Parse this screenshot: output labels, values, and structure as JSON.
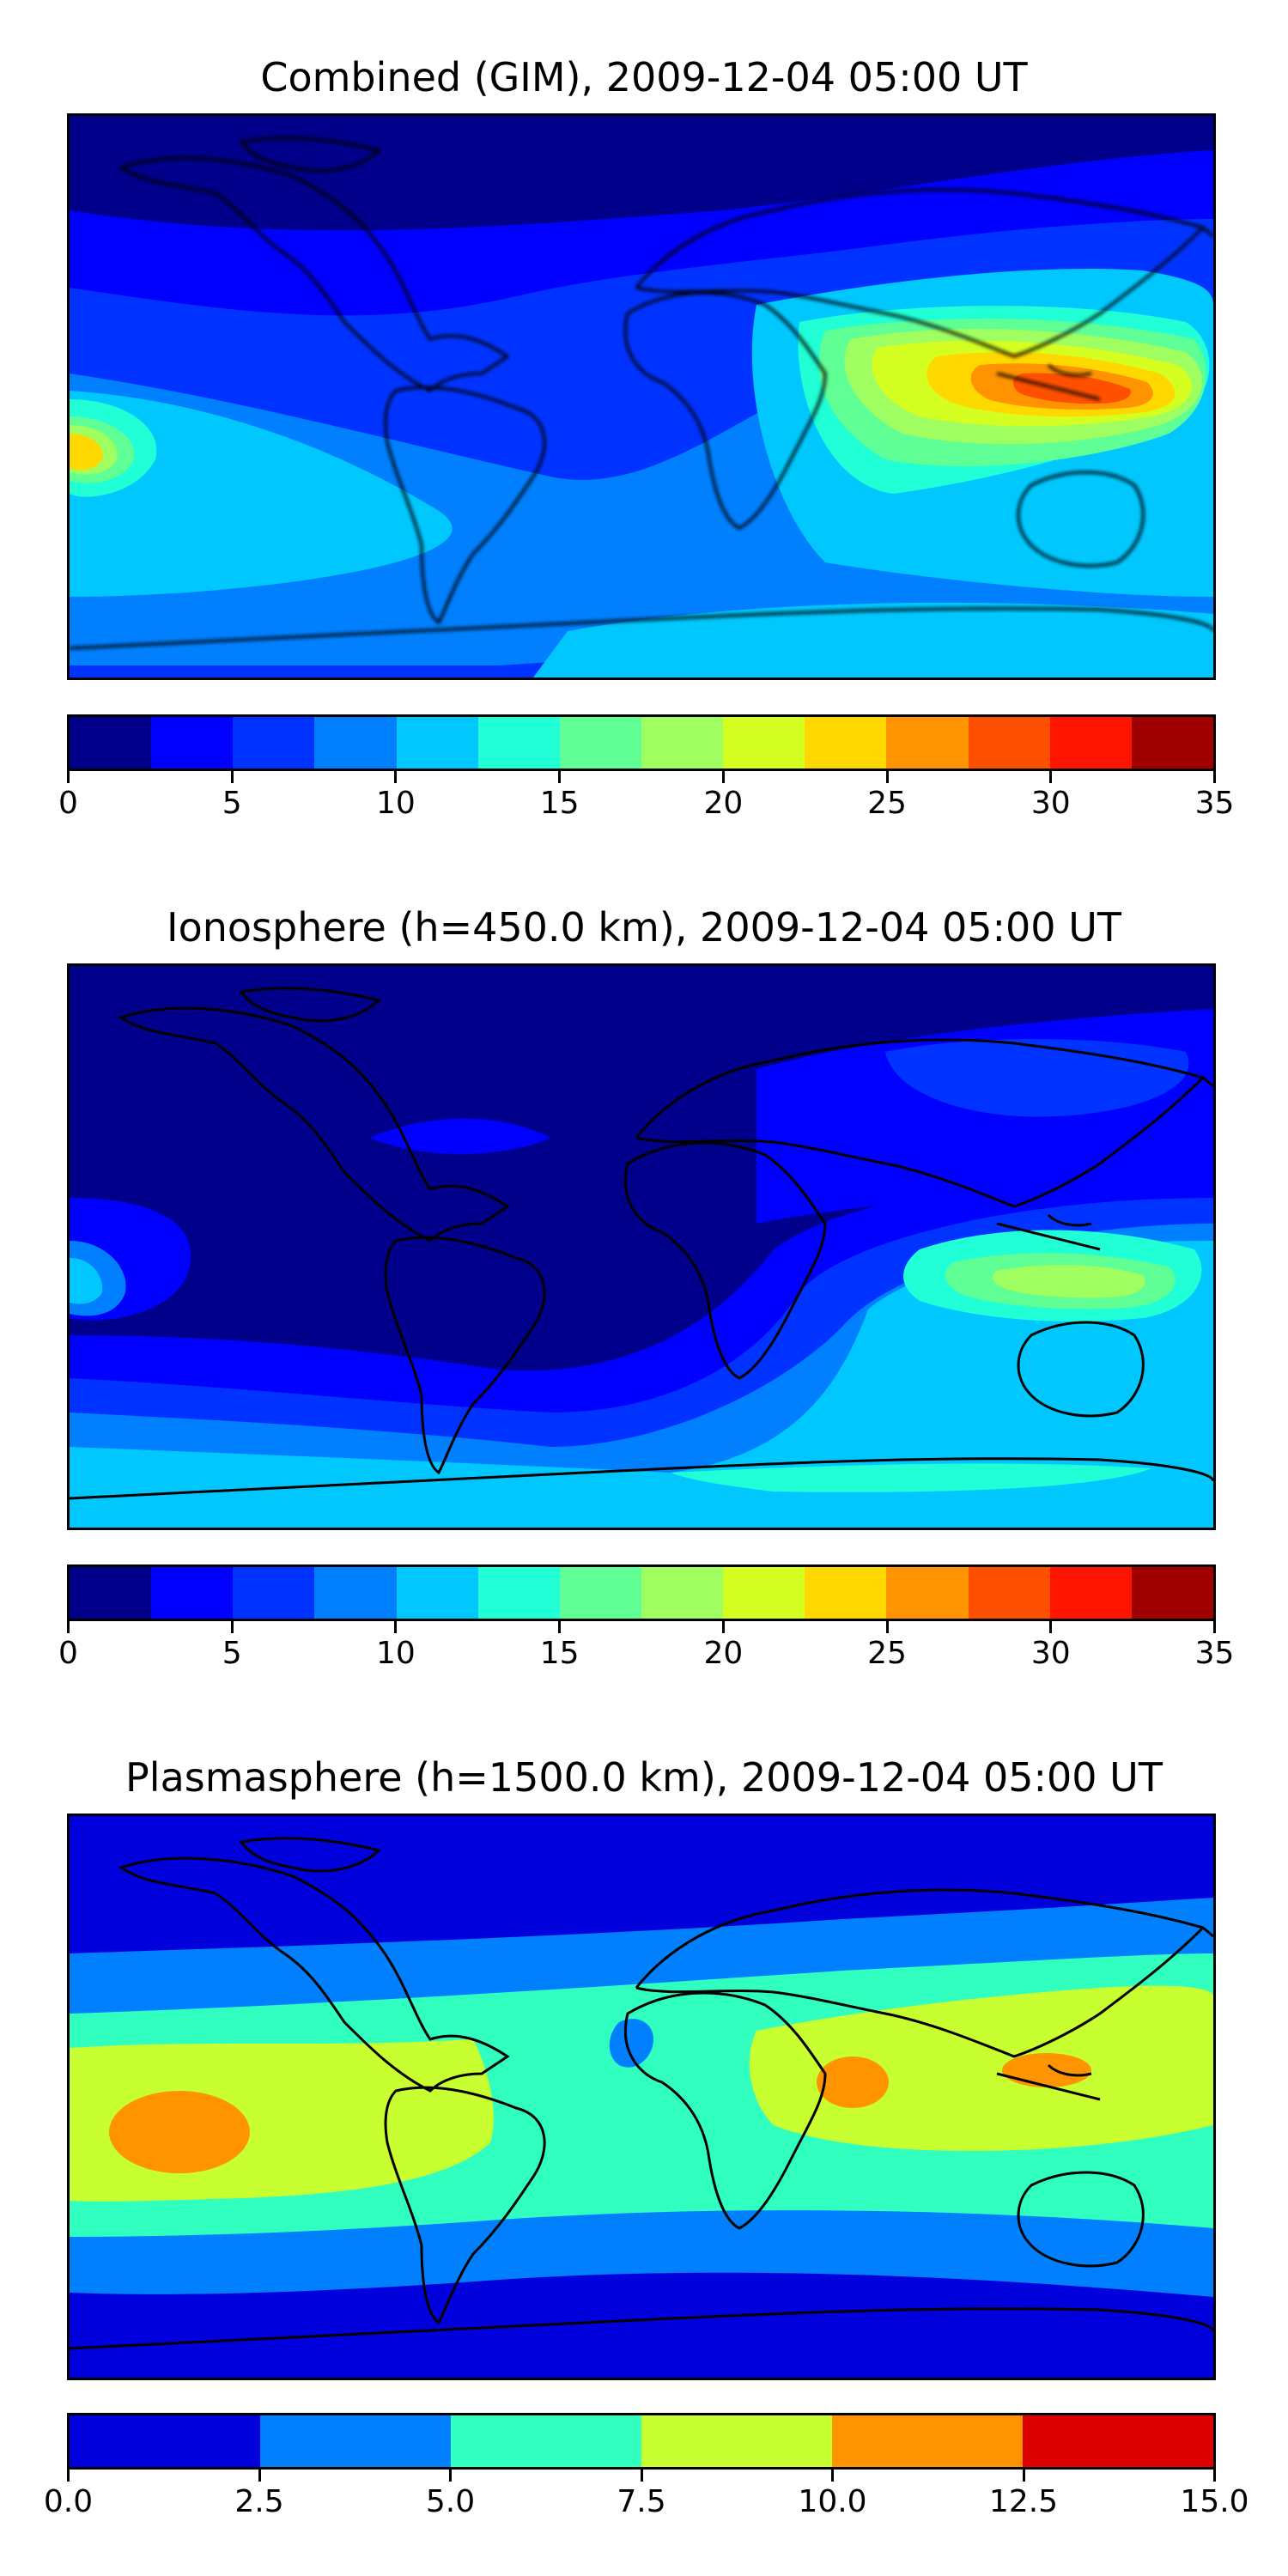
{
  "panels": [
    {
      "title": "Combined (GIM), 2009-12-04 05:00 UT",
      "colorbar": {
        "colors": [
          "#00008b",
          "#0000ff",
          "#0033ff",
          "#0080ff",
          "#00c8ff",
          "#20ffd5",
          "#60ff95",
          "#9fff60",
          "#d5ff20",
          "#ffd800",
          "#ff9400",
          "#ff5000",
          "#ff1400",
          "#a00000"
        ],
        "tick_labels": [
          "0",
          "5",
          "10",
          "15",
          "20",
          "25",
          "30",
          "35"
        ]
      }
    },
    {
      "title": "Ionosphere  (h=450.0 km), 2009-12-04 05:00 UT",
      "colorbar": {
        "colors": [
          "#00008b",
          "#0000ff",
          "#0033ff",
          "#0080ff",
          "#00c8ff",
          "#20ffd5",
          "#60ff95",
          "#9fff60",
          "#d5ff20",
          "#ffd800",
          "#ff9400",
          "#ff5000",
          "#ff1400",
          "#a00000"
        ],
        "tick_labels": [
          "0",
          "5",
          "10",
          "15",
          "20",
          "25",
          "30",
          "35"
        ]
      }
    },
    {
      "title": "Plasmasphere (h=1500.0 km), 2009-12-04 05:00 UT",
      "colorbar": {
        "colors": [
          "#0000dd",
          "#0080ff",
          "#30ffc0",
          "#c8ff30",
          "#ff9400",
          "#dd0000"
        ],
        "tick_labels": [
          "0.0",
          "2.5",
          "5.0",
          "7.5",
          "10.0",
          "12.5",
          "15.0"
        ]
      }
    }
  ]
}
